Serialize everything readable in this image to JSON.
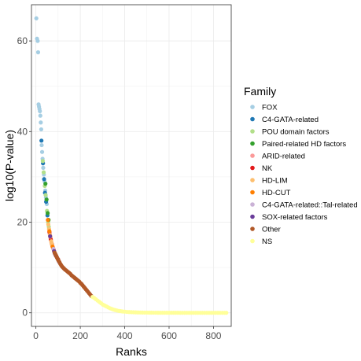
{
  "chart_data": {
    "type": "scatter",
    "xlabel": "Ranks",
    "ylabel": "log10(P-value)",
    "xlim": [
      -20,
      880
    ],
    "ylim": [
      -3,
      68
    ],
    "x_ticks": [
      0,
      200,
      400,
      600,
      800
    ],
    "y_ticks": [
      0,
      20,
      40,
      60
    ],
    "grid": true,
    "legend_title": "Family",
    "legend_position": "right",
    "series": [
      {
        "name": "FOX",
        "color": "#a6cee3",
        "points": [
          [
            2,
            65
          ],
          [
            5,
            60.5
          ],
          [
            8,
            60
          ],
          [
            10,
            57.5
          ],
          [
            12,
            46
          ],
          [
            14,
            45.5
          ],
          [
            16,
            45
          ],
          [
            18,
            44.5
          ],
          [
            20,
            43.5
          ],
          [
            22,
            42
          ],
          [
            24,
            40.5
          ],
          [
            26,
            37
          ],
          [
            28,
            35.5
          ],
          [
            30,
            34
          ],
          [
            33,
            32
          ],
          [
            36,
            30.5
          ],
          [
            39,
            29
          ],
          [
            42,
            27
          ],
          [
            45,
            25.5
          ],
          [
            49,
            24
          ]
        ]
      },
      {
        "name": "C4-GATA-related",
        "color": "#1f78b4",
        "points": [
          [
            25,
            38
          ],
          [
            32,
            33
          ],
          [
            37,
            29.5
          ],
          [
            41,
            26.5
          ],
          [
            46,
            24.5
          ],
          [
            52,
            21.5
          ]
        ]
      },
      {
        "name": "POU domain factors",
        "color": "#b2df8a",
        "points": [
          [
            31,
            33.5
          ],
          [
            35,
            31
          ],
          [
            40,
            28
          ],
          [
            44,
            26
          ],
          [
            50,
            22.5
          ],
          [
            55,
            20
          ],
          [
            58,
            19
          ]
        ]
      },
      {
        "name": "Paired-related HD factors",
        "color": "#33a02c",
        "points": [
          [
            43,
            28.5
          ],
          [
            48,
            25
          ],
          [
            53,
            22
          ],
          [
            57,
            20.5
          ]
        ]
      },
      {
        "name": "ARID-related",
        "color": "#fb9a99",
        "points": [
          [
            60,
            18
          ],
          [
            62,
            17.5
          ],
          [
            64,
            17
          ],
          [
            66,
            16.5
          ],
          [
            68,
            16
          ],
          [
            70,
            15.5
          ],
          [
            73,
            15
          ],
          [
            76,
            14.5
          ],
          [
            80,
            14
          ]
        ]
      },
      {
        "name": "NK",
        "color": "#e31a1c",
        "points": [
          [
            61,
            17.8
          ],
          [
            67,
            16.2
          ],
          [
            72,
            15.2
          ],
          [
            78,
            14.2
          ],
          [
            85,
            13.2
          ],
          [
            92,
            12.5
          ],
          [
            100,
            11.8
          ]
        ]
      },
      {
        "name": "HD-LIM",
        "color": "#fdbf6f",
        "points": [
          [
            56,
            19.5
          ],
          [
            59,
            18.5
          ],
          [
            63,
            17.2
          ],
          [
            65,
            16.8
          ],
          [
            69,
            15.8
          ],
          [
            71,
            15.3
          ],
          [
            74,
            14.8
          ],
          [
            77,
            14.3
          ]
        ]
      },
      {
        "name": "HD-CUT",
        "color": "#ff7f00",
        "points": [
          [
            54,
            20.5
          ],
          [
            61,
            18
          ],
          [
            75,
            14.6
          ],
          [
            81,
            13.8
          ]
        ]
      },
      {
        "name": "C4-GATA-related::Tal-related",
        "color": "#cab2d6",
        "points": [
          [
            79,
            14.1
          ],
          [
            83,
            13.5
          ],
          [
            88,
            12.9
          ]
        ]
      },
      {
        "name": "SOX-related factors",
        "color": "#6a3d9a",
        "points": [
          [
            64,
            16.9
          ],
          [
            82,
            13.6
          ],
          [
            86,
            13
          ],
          [
            90,
            12.6
          ],
          [
            95,
            12.2
          ],
          [
            105,
            11.2
          ]
        ]
      },
      {
        "name": "Other",
        "color": "#b15928",
        "points": [
          [
            84,
            13.3
          ],
          [
            87,
            13
          ],
          [
            89,
            12.8
          ],
          [
            91,
            12.6
          ],
          [
            94,
            12.3
          ],
          [
            97,
            12
          ],
          [
            99,
            11.8
          ],
          [
            102,
            11.5
          ],
          [
            106,
            11.2
          ],
          [
            110,
            10.8
          ],
          [
            114,
            10.5
          ],
          [
            118,
            10.2
          ],
          [
            122,
            10
          ],
          [
            126,
            9.8
          ],
          [
            130,
            9.6
          ],
          [
            135,
            9.4
          ],
          [
            140,
            9.2
          ],
          [
            145,
            9
          ],
          [
            150,
            8.8
          ],
          [
            155,
            8.6
          ],
          [
            160,
            8.3
          ],
          [
            165,
            8.1
          ],
          [
            170,
            7.9
          ],
          [
            175,
            7.7
          ],
          [
            180,
            7.5
          ],
          [
            185,
            7.3
          ],
          [
            190,
            7.1
          ],
          [
            195,
            6.9
          ],
          [
            200,
            6.6
          ],
          [
            205,
            6.4
          ],
          [
            210,
            6.1
          ],
          [
            215,
            5.8
          ],
          [
            220,
            5.5
          ],
          [
            225,
            5.2
          ],
          [
            230,
            4.9
          ],
          [
            235,
            4.6
          ],
          [
            240,
            4.3
          ],
          [
            245,
            4
          ],
          [
            250,
            3.7
          ]
        ]
      },
      {
        "name": "NS",
        "color": "#ffff99",
        "points": [
          [
            255,
            3.5
          ],
          [
            262,
            3.3
          ],
          [
            270,
            3
          ],
          [
            278,
            2.7
          ],
          [
            286,
            2.4
          ],
          [
            294,
            2.1
          ],
          [
            302,
            1.8
          ],
          [
            310,
            1.6
          ],
          [
            318,
            1.4
          ],
          [
            326,
            1.2
          ],
          [
            334,
            1
          ],
          [
            342,
            0.85
          ],
          [
            350,
            0.7
          ],
          [
            358,
            0.6
          ],
          [
            366,
            0.5
          ],
          [
            374,
            0.42
          ],
          [
            382,
            0.36
          ],
          [
            390,
            0.3
          ],
          [
            400,
            0.25
          ],
          [
            410,
            0.2
          ],
          [
            420,
            0.17
          ],
          [
            430,
            0.14
          ],
          [
            440,
            0.12
          ],
          [
            450,
            0.1
          ],
          [
            460,
            0.08
          ],
          [
            470,
            0.07
          ],
          [
            480,
            0.06
          ],
          [
            490,
            0.05
          ],
          [
            500,
            0.05
          ],
          [
            510,
            0.04
          ],
          [
            520,
            0.04
          ],
          [
            530,
            0.03
          ],
          [
            540,
            0.03
          ],
          [
            550,
            0.02
          ],
          [
            560,
            0.02
          ],
          [
            570,
            0.02
          ],
          [
            580,
            0.02
          ],
          [
            590,
            0.01
          ],
          [
            600,
            0.01
          ],
          [
            610,
            0.01
          ],
          [
            620,
            0.01
          ],
          [
            630,
            0.01
          ],
          [
            640,
            0.01
          ],
          [
            650,
            0
          ],
          [
            660,
            0
          ],
          [
            670,
            0
          ],
          [
            680,
            0
          ],
          [
            690,
            0
          ],
          [
            700,
            0
          ],
          [
            710,
            0
          ],
          [
            720,
            0
          ],
          [
            730,
            0
          ],
          [
            740,
            0
          ],
          [
            750,
            0
          ],
          [
            760,
            0
          ],
          [
            770,
            0
          ],
          [
            780,
            0
          ],
          [
            790,
            0
          ],
          [
            800,
            0
          ],
          [
            810,
            0
          ],
          [
            820,
            0
          ],
          [
            830,
            0
          ],
          [
            840,
            0
          ],
          [
            850,
            0
          ],
          [
            858,
            0
          ]
        ]
      }
    ]
  }
}
